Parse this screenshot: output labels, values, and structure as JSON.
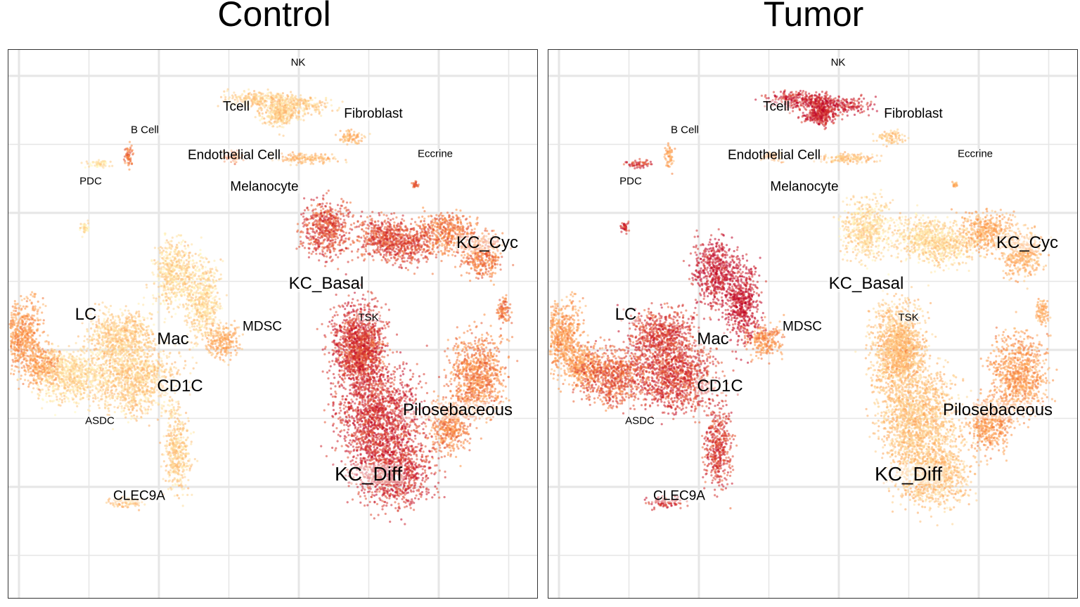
{
  "chart_data": [
    {
      "type": "scatter",
      "title": "Control",
      "labels": [
        "NK",
        "Tcell",
        "Fibroblast",
        "B Cell",
        "Endothelial Cell",
        "Eccrine",
        "PDC",
        "Melanocyte",
        "KC_Cyc",
        "KC_Basal",
        "LC",
        "MDSC",
        "TSK",
        "Mac",
        "CD1C",
        "Pilosebaceous",
        "ASDC",
        "KC_Diff",
        "CLEC9A"
      ],
      "clusters": [
        {
          "name": "NK",
          "x": 0.54,
          "y": 0.05,
          "level": 0.2
        },
        {
          "name": "Tcell",
          "x": 0.44,
          "y": 0.1,
          "level": 0.2
        },
        {
          "name": "Fibroblast",
          "x": 0.66,
          "y": 0.14,
          "level": 0.3
        },
        {
          "name": "B Cell",
          "x": 0.21,
          "y": 0.17,
          "level": 0.1
        },
        {
          "name": "Endothelial Cell",
          "x": 0.32,
          "y": 0.2,
          "level": 0.6
        },
        {
          "name": "Eccrine",
          "x": 0.78,
          "y": 0.22,
          "level": 0.7
        },
        {
          "name": "PDC",
          "x": 0.15,
          "y": 0.26,
          "level": 0.1
        },
        {
          "name": "Melanocyte",
          "x": 0.45,
          "y": 0.22,
          "level": 0.55
        },
        {
          "name": "KC_Cyc",
          "x": 0.88,
          "y": 0.36,
          "level": 0.6
        },
        {
          "name": "KC_Basal",
          "x": 0.62,
          "y": 0.38,
          "level": 0.75
        },
        {
          "name": "LC",
          "x": 0.08,
          "y": 0.5,
          "level": 0.45
        },
        {
          "name": "MDSC",
          "x": 0.44,
          "y": 0.51,
          "level": 0.35
        },
        {
          "name": "TSK",
          "x": 0.68,
          "y": 0.5,
          "level": 0.7
        },
        {
          "name": "Mac",
          "x": 0.34,
          "y": 0.51,
          "level": 0.15
        },
        {
          "name": "CD1C",
          "x": 0.24,
          "y": 0.6,
          "level": 0.2
        },
        {
          "name": "Pilosebaceous",
          "x": 0.86,
          "y": 0.62,
          "level": 0.55
        },
        {
          "name": "ASDC",
          "x": 0.12,
          "y": 0.62,
          "level": 0.15
        },
        {
          "name": "KC_Diff",
          "x": 0.7,
          "y": 0.72,
          "level": 0.85
        },
        {
          "name": "CLEC9A",
          "x": 0.22,
          "y": 0.83,
          "level": 0.25
        }
      ]
    },
    {
      "type": "scatter",
      "title": "Tumor",
      "labels": [
        "NK",
        "Tcell",
        "Fibroblast",
        "B Cell",
        "Endothelial Cell",
        "Eccrine",
        "PDC",
        "Melanocyte",
        "KC_Cyc",
        "KC_Basal",
        "LC",
        "MDSC",
        "TSK",
        "Mac",
        "CD1C",
        "Pilosebaceous",
        "ASDC",
        "KC_Diff",
        "CLEC9A"
      ],
      "clusters": [
        {
          "name": "NK",
          "x": 0.54,
          "y": 0.05,
          "level": 0.9
        },
        {
          "name": "Tcell",
          "x": 0.44,
          "y": 0.1,
          "level": 0.9
        },
        {
          "name": "Fibroblast",
          "x": 0.66,
          "y": 0.14,
          "level": 0.25
        },
        {
          "name": "B Cell",
          "x": 0.21,
          "y": 0.17,
          "level": 0.8
        },
        {
          "name": "Endothelial Cell",
          "x": 0.32,
          "y": 0.2,
          "level": 0.4
        },
        {
          "name": "Eccrine",
          "x": 0.78,
          "y": 0.22,
          "level": 0.3
        },
        {
          "name": "PDC",
          "x": 0.15,
          "y": 0.26,
          "level": 0.85
        },
        {
          "name": "Melanocyte",
          "x": 0.45,
          "y": 0.22,
          "level": 0.4
        },
        {
          "name": "KC_Cyc",
          "x": 0.88,
          "y": 0.36,
          "level": 0.35
        },
        {
          "name": "KC_Basal",
          "x": 0.62,
          "y": 0.38,
          "level": 0.15
        },
        {
          "name": "LC",
          "x": 0.08,
          "y": 0.5,
          "level": 0.45
        },
        {
          "name": "MDSC",
          "x": 0.44,
          "y": 0.51,
          "level": 0.5
        },
        {
          "name": "TSK",
          "x": 0.68,
          "y": 0.5,
          "level": 0.4
        },
        {
          "name": "Mac",
          "x": 0.34,
          "y": 0.51,
          "level": 0.95
        },
        {
          "name": "CD1C",
          "x": 0.24,
          "y": 0.6,
          "level": 0.8
        },
        {
          "name": "Pilosebaceous",
          "x": 0.86,
          "y": 0.62,
          "level": 0.45
        },
        {
          "name": "ASDC",
          "x": 0.12,
          "y": 0.62,
          "level": 0.7
        },
        {
          "name": "KC_Diff",
          "x": 0.7,
          "y": 0.72,
          "level": 0.25
        },
        {
          "name": "CLEC9A",
          "x": 0.22,
          "y": 0.83,
          "level": 0.85
        }
      ]
    }
  ],
  "colors": {
    "low": "#fff7bc",
    "mid": "#fd8d3c",
    "high": "#bd0026",
    "grid": "#e6e6e6",
    "border": "#333333"
  }
}
